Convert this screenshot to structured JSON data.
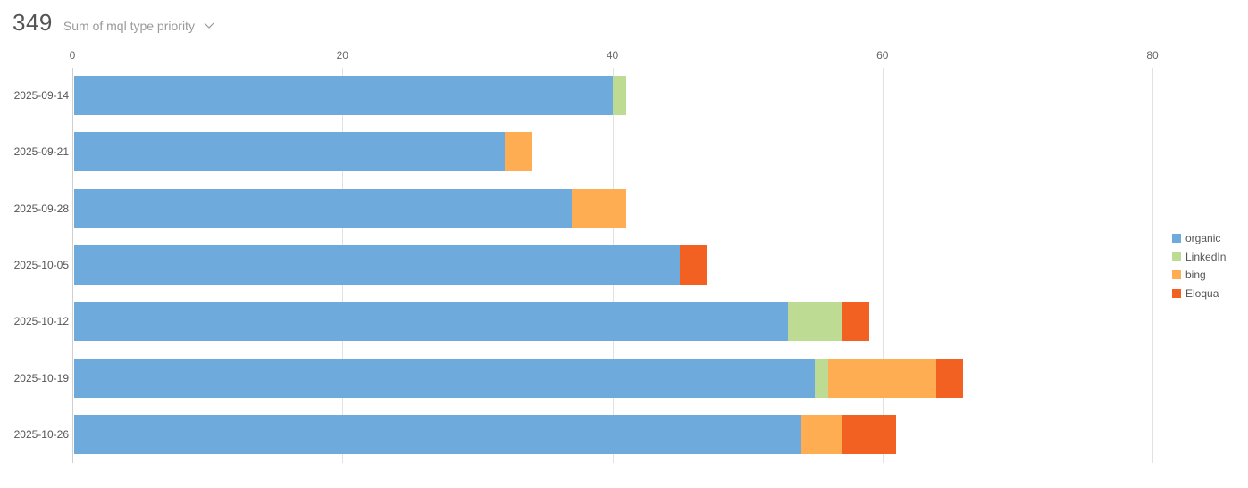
{
  "header": {
    "total": "349",
    "metric_label": "Sum of mql type priority",
    "dropdown_icon": "chevron-down-icon"
  },
  "chart_data": {
    "type": "bar",
    "orientation": "horizontal",
    "stacked": true,
    "title": "Sum of mql type priority",
    "total": 349,
    "xlabel": "",
    "ylabel": "",
    "xlim": [
      0,
      80
    ],
    "x_ticks": [
      0,
      20,
      40,
      60,
      80
    ],
    "grid": true,
    "legend_position": "right",
    "categories": [
      "2025-09-14",
      "2025-09-21",
      "2025-09-28",
      "2025-10-05",
      "2025-10-12",
      "2025-10-19",
      "2025-10-26"
    ],
    "series": [
      {
        "name": "organic",
        "color": "#6eaadb",
        "values": [
          40,
          32,
          37,
          45,
          53,
          55,
          54
        ]
      },
      {
        "name": "LinkedIn",
        "color": "#bedb93",
        "values": [
          1,
          0,
          0,
          0,
          4,
          1,
          0
        ]
      },
      {
        "name": "bing",
        "color": "#ffad52",
        "values": [
          0,
          2,
          4,
          0,
          0,
          8,
          3
        ]
      },
      {
        "name": "Eloqua",
        "color": "#f26122",
        "values": [
          0,
          0,
          0,
          2,
          2,
          2,
          4
        ]
      }
    ]
  }
}
